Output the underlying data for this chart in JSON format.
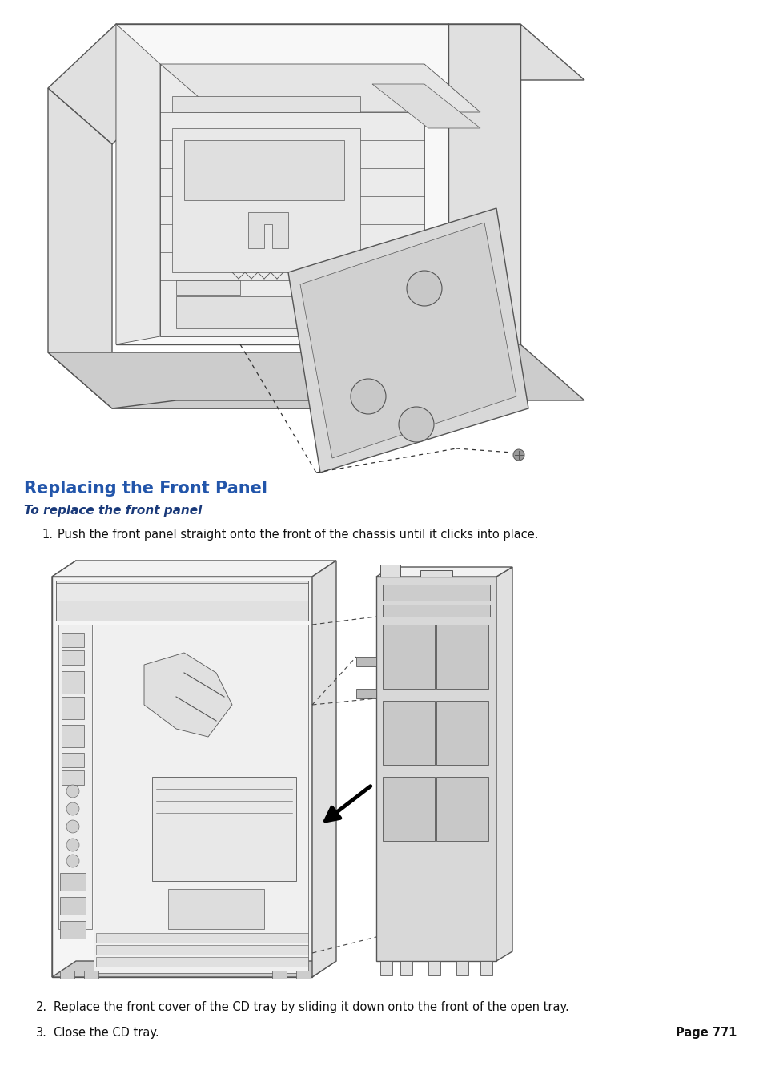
{
  "page_bg": "#ffffff",
  "title": "Replacing the Front Panel",
  "title_color": "#2255aa",
  "title_fontsize": 15,
  "subtitle": "To replace the front panel",
  "subtitle_color": "#1a3a7a",
  "subtitle_fontsize": 11,
  "step1_num": "1.",
  "step1_text": "Push the front panel straight onto the front of the chassis until it clicks into place.",
  "step2_num": "2.",
  "step2_text": "Replace the front cover of the CD tray by sliding it down onto the front of the open tray.",
  "step3_num": "3.",
  "step3_text": "Close the CD tray.",
  "page_num": "Page 771",
  "text_color": "#111111",
  "text_fontsize": 10.5,
  "page_num_fontsize": 10.5,
  "line_color": "#555555",
  "fill_light": "#f2f2f2",
  "fill_mid": "#e0e0e0",
  "fill_dark": "#cccccc",
  "fill_panel": "#d8d8d8"
}
